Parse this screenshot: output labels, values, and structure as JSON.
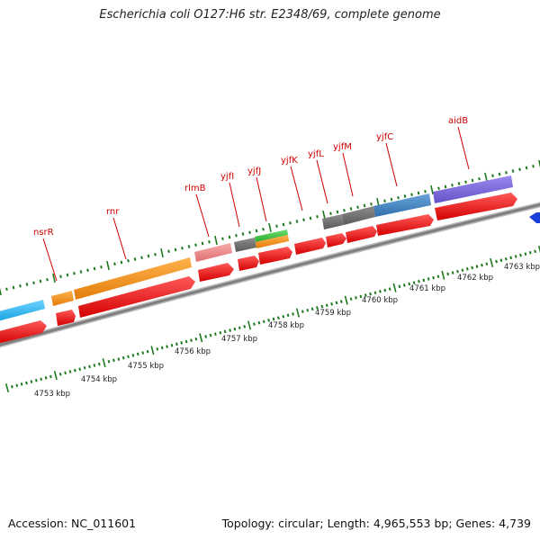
{
  "title": "Escherichia coli O127:H6 str. E2348/69, complete genome",
  "footer": {
    "accession": "Accession: NC_011601",
    "summary": "Topology: circular; Length: 4,965,553 bp; Genes: 4,739"
  },
  "genes": [
    {
      "name": "nsrR"
    },
    {
      "name": "rnr"
    },
    {
      "name": "rlmB"
    },
    {
      "name": "yjfI"
    },
    {
      "name": "yjfJ"
    },
    {
      "name": "yjfK"
    },
    {
      "name": "yjfL"
    },
    {
      "name": "yjfM"
    },
    {
      "name": "yjfC"
    },
    {
      "name": "aidB"
    }
  ],
  "scale_labels": [
    "4753 kbp",
    "4754 kbp",
    "4755 kbp",
    "4756 kbp",
    "4757 kbp",
    "4758 kbp",
    "4759 kbp",
    "4760 kbp",
    "4761 kbp",
    "4762 kbp",
    "4763 kbp"
  ],
  "colors": {
    "cds": "#ee1111",
    "gene_orange": "#f5921e",
    "gene_blue_light": "#2ab5ee",
    "gene_salmon": "#f08a8a",
    "gene_gray": "#6b6b6b",
    "gene_green": "#3fbf3f",
    "gene_steelblue": "#3d7fc0",
    "gene_purple": "#7b68d8",
    "tick_green": "#1f7a1f",
    "backbone": "#8a8a8a",
    "label_red": "#cc0000"
  }
}
